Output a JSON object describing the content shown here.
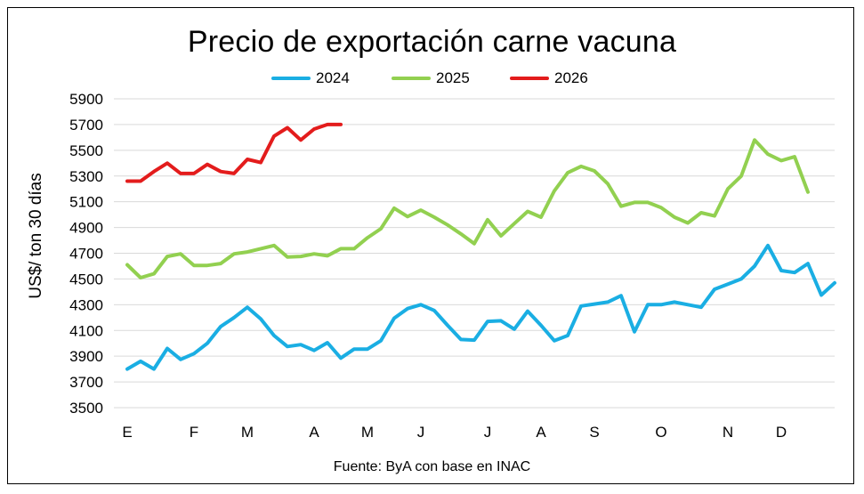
{
  "chart_data": {
    "type": "line",
    "title": "Precio de exportación carne vacuna",
    "ylabel": "US$/ ton 30 días",
    "xlabel": "",
    "source": "Fuente: ByA con base en INAC",
    "ylim": [
      3500,
      5900
    ],
    "yticks": [
      3500,
      3700,
      3900,
      4100,
      4300,
      4500,
      4700,
      4900,
      5100,
      5300,
      5500,
      5700,
      5900
    ],
    "grid": true,
    "legend_position": "top",
    "x_count": 54,
    "month_ticks": [
      {
        "label": "E",
        "x": 0
      },
      {
        "label": "F",
        "x": 5
      },
      {
        "label": "M",
        "x": 9
      },
      {
        "label": "A",
        "x": 14
      },
      {
        "label": "M",
        "x": 18
      },
      {
        "label": "J",
        "x": 22
      },
      {
        "label": "J",
        "x": 27
      },
      {
        "label": "A",
        "x": 31
      },
      {
        "label": "S",
        "x": 35
      },
      {
        "label": "O",
        "x": 40
      },
      {
        "label": "N",
        "x": 45
      },
      {
        "label": "D",
        "x": 49
      }
    ],
    "series": [
      {
        "name": "2024",
        "color": "#1aaee3",
        "values": [
          3800,
          3860,
          3800,
          3960,
          3875,
          3920,
          4000,
          4130,
          4200,
          4280,
          4190,
          4060,
          3975,
          3990,
          3945,
          4005,
          3885,
          3955,
          3955,
          4020,
          4195,
          4270,
          4300,
          4255,
          4140,
          4030,
          4025,
          4170,
          4175,
          4110,
          4250,
          4140,
          4020,
          4060,
          4290,
          4305,
          4320,
          4370,
          4090,
          4300,
          4300,
          4320,
          4300,
          4280,
          4420,
          4460,
          4500,
          4600,
          4760,
          4565,
          4550,
          4620,
          4375,
          4470
        ]
      },
      {
        "name": "2025",
        "color": "#92d050",
        "values": [
          4610,
          4510,
          4540,
          4675,
          4695,
          4605,
          4605,
          4620,
          4695,
          4710,
          4735,
          4760,
          4670,
          4675,
          4695,
          4680,
          4735,
          4735,
          4820,
          4890,
          5050,
          4985,
          5035,
          4980,
          4920,
          4850,
          4775,
          4960,
          4835,
          4930,
          5025,
          4980,
          5185,
          5325,
          5375,
          5340,
          5240,
          5065,
          5095,
          5095,
          5055,
          4980,
          4935,
          5015,
          4990,
          5200,
          5300,
          5580,
          5470,
          5420,
          5450,
          5175
        ]
      },
      {
        "name": "2026",
        "color": "#e31c1c",
        "values": [
          5260,
          5260,
          5335,
          5400,
          5320,
          5320,
          5390,
          5335,
          5320,
          5430,
          5405,
          5610,
          5675,
          5580,
          5665,
          5700,
          5700
        ]
      }
    ]
  }
}
